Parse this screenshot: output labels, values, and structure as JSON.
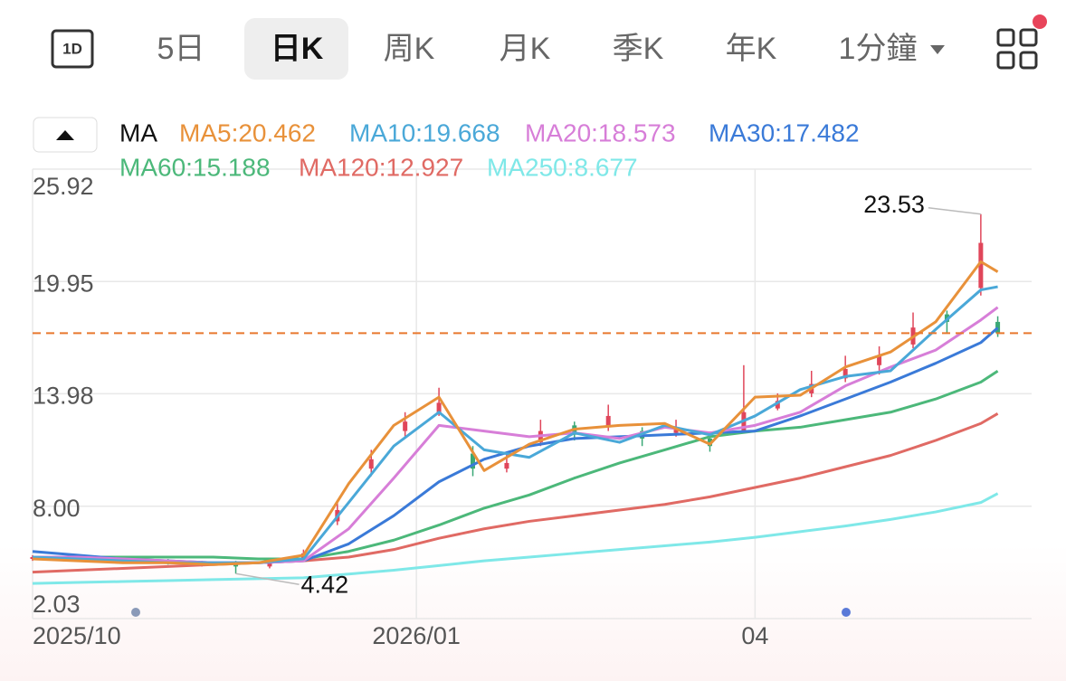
{
  "toolbar": {
    "icon": "1D",
    "tabs": [
      "5日",
      "日K",
      "周K",
      "月K",
      "季K",
      "年K",
      "1分鐘"
    ],
    "selected": 1
  },
  "chart_data": {
    "type": "candlestick",
    "indicator": "MA",
    "xlim": [
      0,
      177
    ],
    "ylim": [
      2.03,
      25.92
    ],
    "yticks": [
      2.03,
      {
        "value": 8,
        "label": "8.00"
      },
      13.98,
      19.95,
      25.92
    ],
    "xticks": [
      {
        "value": 0,
        "label": "2025/10"
      },
      {
        "value": 68,
        "label": "2026/01"
      },
      {
        "value": 128,
        "label": "04"
      }
    ],
    "grid": true,
    "up_color": "#e0465a",
    "down_color": "#3aa876",
    "last_line_color": "#e8772e",
    "candles": {
      "x": [
        0,
        6,
        12,
        18,
        24,
        30,
        36,
        42,
        48,
        54,
        60,
        66,
        72,
        78,
        84,
        90,
        96,
        102,
        108,
        114,
        120,
        126,
        132,
        138,
        144,
        150,
        156,
        162,
        168,
        171
      ],
      "open": [
        5.2,
        5.3,
        5.2,
        5.1,
        5.1,
        5.0,
        5.0,
        4.8,
        5.2,
        7.2,
        10.0,
        12.0,
        13.0,
        10.8,
        10.0,
        11.4,
        12.3,
        12.2,
        12.0,
        11.9,
        11.6,
        12.0,
        13.2,
        14.0,
        14.8,
        15.5,
        16.6,
        18.2,
        19.6,
        17.8
      ],
      "high": [
        5.4,
        5.35,
        5.3,
        5.2,
        5.2,
        5.1,
        5.1,
        5.2,
        5.7,
        8.3,
        11.0,
        13.0,
        14.3,
        11.2,
        10.8,
        12.6,
        12.5,
        13.4,
        12.2,
        12.6,
        11.8,
        15.5,
        14.0,
        15.2,
        16.0,
        16.5,
        18.3,
        18.4,
        23.53,
        18.1
      ],
      "low": [
        5.1,
        5.1,
        5.0,
        5.0,
        4.9,
        4.8,
        4.42,
        4.7,
        5.1,
        7.0,
        9.6,
        11.7,
        12.8,
        9.6,
        9.8,
        11.2,
        11.5,
        12.0,
        11.2,
        11.7,
        10.9,
        11.9,
        13.1,
        13.8,
        14.6,
        15.0,
        16.4,
        17.2,
        19.2,
        17.0
      ],
      "close": [
        5.3,
        5.2,
        5.1,
        5.1,
        5.0,
        5.0,
        4.8,
        5.0,
        5.5,
        7.8,
        10.5,
        12.5,
        13.5,
        10.0,
        10.3,
        12.0,
        11.8,
        12.8,
        11.6,
        12.2,
        11.2,
        13.0,
        13.6,
        14.5,
        15.3,
        16.0,
        17.5,
        17.8,
        22.0,
        17.2
      ]
    },
    "x": [
      0,
      8,
      16,
      24,
      32,
      40,
      48,
      56,
      64,
      72,
      80,
      88,
      96,
      104,
      112,
      120,
      128,
      136,
      144,
      152,
      160,
      168,
      171
    ],
    "series": [
      {
        "name": "MA5:20.462",
        "color": "#e8913a",
        "values": [
          5.2,
          5.1,
          5.0,
          5.0,
          4.9,
          5.0,
          5.4,
          9.2,
          12.3,
          13.8,
          9.9,
          11.3,
          12.1,
          12.3,
          12.4,
          11.3,
          13.8,
          13.9,
          15.4,
          16.2,
          17.8,
          21.0,
          20.462
        ]
      },
      {
        "name": "MA10:19.668",
        "color": "#4aa8d8",
        "values": [
          5.3,
          5.2,
          5.1,
          5.0,
          5.0,
          5.0,
          5.2,
          8.2,
          11.2,
          13.0,
          11.0,
          10.6,
          11.9,
          11.4,
          12.3,
          11.8,
          12.8,
          14.2,
          14.9,
          15.2,
          17.4,
          19.5,
          19.668
        ]
      },
      {
        "name": "MA20:18.573",
        "color": "#d77ed8",
        "values": [
          5.3,
          5.3,
          5.2,
          5.1,
          5.0,
          5.0,
          5.1,
          6.8,
          9.5,
          12.3,
          12.0,
          11.7,
          11.9,
          11.6,
          12.2,
          11.9,
          12.3,
          13.0,
          14.4,
          15.4,
          16.3,
          17.9,
          18.573
        ]
      },
      {
        "name": "MA30:17.482",
        "color": "#3a7ad8",
        "values": [
          5.6,
          5.4,
          5.2,
          5.1,
          5.0,
          5.0,
          5.1,
          6.0,
          7.5,
          9.3,
          10.5,
          11.2,
          11.6,
          11.7,
          11.8,
          11.9,
          12.0,
          12.8,
          13.7,
          14.6,
          15.6,
          16.7,
          17.482
        ]
      },
      {
        "name": "MA60:15.188",
        "color": "#4cb87a",
        "values": [
          5.3,
          5.3,
          5.3,
          5.3,
          5.3,
          5.2,
          5.2,
          5.6,
          6.2,
          7.0,
          7.9,
          8.6,
          9.5,
          10.3,
          11.0,
          11.7,
          12.0,
          12.2,
          12.6,
          13.0,
          13.7,
          14.6,
          15.188
        ]
      },
      {
        "name": "MA120:12.927",
        "color": "#e06a64",
        "values": [
          4.5,
          4.6,
          4.7,
          4.8,
          4.9,
          5.0,
          5.1,
          5.3,
          5.7,
          6.3,
          6.8,
          7.2,
          7.5,
          7.8,
          8.1,
          8.5,
          9.0,
          9.5,
          10.1,
          10.7,
          11.5,
          12.4,
          12.927
        ]
      },
      {
        "name": "MA250:8.677",
        "color": "#7fe8e8",
        "values": [
          3.9,
          3.95,
          4.0,
          4.05,
          4.1,
          4.15,
          4.2,
          4.4,
          4.6,
          4.85,
          5.1,
          5.3,
          5.5,
          5.7,
          5.9,
          6.1,
          6.35,
          6.65,
          6.95,
          7.3,
          7.7,
          8.2,
          8.677
        ]
      }
    ]
  }
}
